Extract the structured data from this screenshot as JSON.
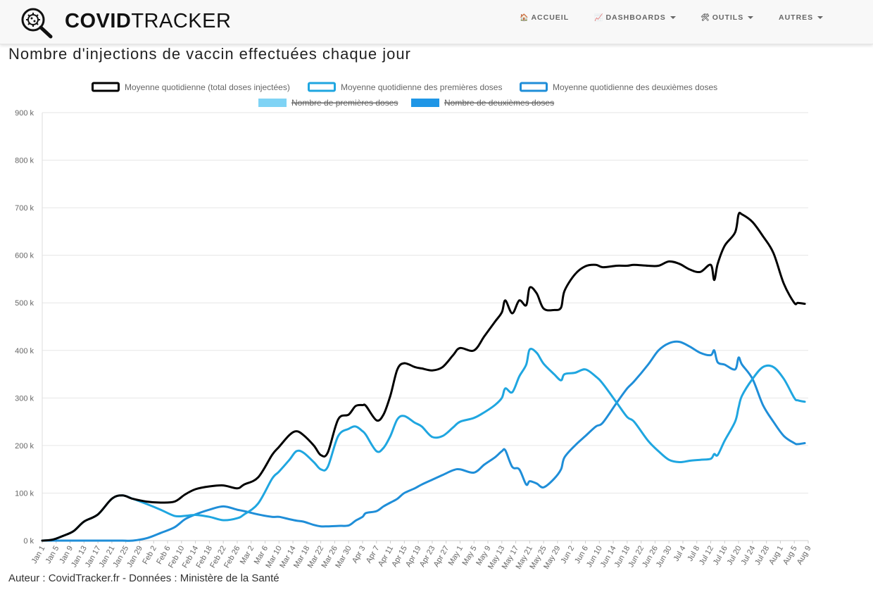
{
  "nav": {
    "brand_bold": "COVID",
    "brand_light": "TRACKER",
    "items": [
      {
        "icon": "🏠",
        "icon_name": "home-icon",
        "label": "ACCUEIL",
        "dropdown": false
      },
      {
        "icon": "📈",
        "icon_name": "chart-icon",
        "label": "DASHBOARDS",
        "dropdown": true
      },
      {
        "icon": "🛠",
        "icon_name": "tools-icon",
        "label": "OUTILS",
        "dropdown": true
      },
      {
        "icon": "",
        "icon_name": "",
        "label": "AUTRES",
        "dropdown": true
      }
    ]
  },
  "page": {
    "title": "Nombre d'injections de vaccin effectuées chaque jour",
    "credit": "Auteur : CovidTracker.fr - Données : Ministère de la Santé"
  },
  "chart_data": {
    "type": "line",
    "ylim": [
      0,
      900000
    ],
    "y_tick_values": [
      0,
      100000,
      200000,
      300000,
      400000,
      500000,
      600000,
      700000,
      800000,
      900000
    ],
    "y_tick_labels": [
      "0 k",
      "100 k",
      "200 k",
      "300 k",
      "400 k",
      "500 k",
      "600 k",
      "700 k",
      "800 k",
      "900 k"
    ],
    "x_tick_labels": [
      "Jan 1",
      "Jan 5",
      "Jan 9",
      "Jan 13",
      "Jan 17",
      "Jan 21",
      "Jan 25",
      "Jan 29",
      "Feb 2",
      "Feb 6",
      "Feb 10",
      "Feb 14",
      "Feb 18",
      "Feb 22",
      "Feb 26",
      "Mar 2",
      "Mar 6",
      "Mar 10",
      "Mar 14",
      "Mar 18",
      "Mar 22",
      "Mar 26",
      "Mar 30",
      "Apr 3",
      "Apr 7",
      "Apr 11",
      "Apr 15",
      "Apr 19",
      "Apr 23",
      "Apr 27",
      "May 1",
      "May 5",
      "May 9",
      "May 13",
      "May 17",
      "May 21",
      "May 25",
      "May 29",
      "Jun 2",
      "Jun 6",
      "Jun 10",
      "Jun 14",
      "Jun 18",
      "Jun 22",
      "Jun 26",
      "Jun 30",
      "Jul 4",
      "Jul 8",
      "Jul 12",
      "Jul 16",
      "Jul 20",
      "Jul 24",
      "Jul 28",
      "Aug 1",
      "Aug 5",
      "Aug 9"
    ],
    "grid": true,
    "legend_position": "top",
    "legend": [
      {
        "name": "Moyenne quotidienne (total doses injectées)",
        "color": "#000000",
        "style": "outline",
        "hidden": false
      },
      {
        "name": "Moyenne quotidienne des premières doses",
        "color": "#1fa6e0",
        "style": "outline",
        "hidden": false
      },
      {
        "name": "Moyenne quotidienne des deuxièmes doses",
        "color": "#1f8ed8",
        "style": "outline",
        "hidden": false
      },
      {
        "name": "Nombre de premières doses",
        "color": "#7fd3f5",
        "style": "filled",
        "hidden": true
      },
      {
        "name": "Nombre de deuxièmes doses",
        "color": "#1f96e6",
        "style": "filled",
        "hidden": true
      }
    ],
    "series": [
      {
        "name": "Moyenne quotidienne (total doses injectées)",
        "color": "#000000",
        "x": [
          "2021-01-01",
          "2021-01-04",
          "2021-01-07",
          "2021-01-10",
          "2021-01-13",
          "2021-01-17",
          "2021-01-21",
          "2021-01-24",
          "2021-01-27",
          "2021-01-31",
          "2021-02-04",
          "2021-02-08",
          "2021-02-11",
          "2021-02-14",
          "2021-02-18",
          "2021-02-22",
          "2021-02-26",
          "2021-02-28",
          "2021-03-04",
          "2021-03-08",
          "2021-03-10",
          "2021-03-13",
          "2021-03-15",
          "2021-03-17",
          "2021-03-20",
          "2021-03-22",
          "2021-03-24",
          "2021-03-27",
          "2021-03-30",
          "2021-04-01",
          "2021-04-03",
          "2021-04-04",
          "2021-04-07",
          "2021-04-09",
          "2021-04-11",
          "2021-04-13",
          "2021-04-15",
          "2021-04-18",
          "2021-04-20",
          "2021-04-23",
          "2021-04-26",
          "2021-04-29",
          "2021-05-01",
          "2021-05-05",
          "2021-05-08",
          "2021-05-11",
          "2021-05-13",
          "2021-05-14",
          "2021-05-16",
          "2021-05-18",
          "2021-05-20",
          "2021-05-21",
          "2021-05-23",
          "2021-05-25",
          "2021-05-28",
          "2021-05-30",
          "2021-05-31",
          "2021-06-03",
          "2021-06-06",
          "2021-06-09",
          "2021-06-11",
          "2021-06-15",
          "2021-06-18",
          "2021-06-20",
          "2021-06-24",
          "2021-06-27",
          "2021-06-30",
          "2021-07-03",
          "2021-07-06",
          "2021-07-09",
          "2021-07-12",
          "2021-07-13",
          "2021-07-14",
          "2021-07-16",
          "2021-07-19",
          "2021-07-20",
          "2021-07-21",
          "2021-07-24",
          "2021-07-27",
          "2021-07-30",
          "2021-08-02",
          "2021-08-05",
          "2021-08-06",
          "2021-08-08"
        ],
        "y": [
          0,
          2000,
          10000,
          20000,
          40000,
          55000,
          88000,
          95000,
          88000,
          82000,
          80000,
          82000,
          97000,
          108000,
          114000,
          116000,
          110000,
          118000,
          133000,
          180000,
          197000,
          222000,
          230000,
          222000,
          200000,
          180000,
          185000,
          255000,
          265000,
          283000,
          285000,
          283000,
          253000,
          265000,
          305000,
          360000,
          373000,
          365000,
          362000,
          358000,
          365000,
          390000,
          405000,
          400000,
          430000,
          460000,
          480000,
          505000,
          478000,
          505000,
          495000,
          532000,
          520000,
          488000,
          485000,
          490000,
          525000,
          560000,
          577000,
          580000,
          575000,
          578000,
          578000,
          580000,
          578000,
          578000,
          587000,
          582000,
          570000,
          565000,
          580000,
          548000,
          582000,
          620000,
          648000,
          686000,
          686000,
          670000,
          640000,
          605000,
          540000,
          500000,
          500000,
          498000
        ]
      },
      {
        "name": "Moyenne quotidienne des premières doses",
        "color": "#1fa6e0",
        "x": [
          "2021-01-01",
          "2021-01-04",
          "2021-01-07",
          "2021-01-10",
          "2021-01-13",
          "2021-01-17",
          "2021-01-21",
          "2021-01-24",
          "2021-01-27",
          "2021-01-31",
          "2021-02-04",
          "2021-02-08",
          "2021-02-11",
          "2021-02-14",
          "2021-02-18",
          "2021-02-22",
          "2021-02-26",
          "2021-02-28",
          "2021-03-04",
          "2021-03-08",
          "2021-03-10",
          "2021-03-13",
          "2021-03-15",
          "2021-03-17",
          "2021-03-20",
          "2021-03-22",
          "2021-03-24",
          "2021-03-27",
          "2021-03-30",
          "2021-04-01",
          "2021-04-03",
          "2021-04-04",
          "2021-04-07",
          "2021-04-09",
          "2021-04-11",
          "2021-04-13",
          "2021-04-15",
          "2021-04-18",
          "2021-04-20",
          "2021-04-23",
          "2021-04-26",
          "2021-04-29",
          "2021-05-01",
          "2021-05-05",
          "2021-05-08",
          "2021-05-11",
          "2021-05-13",
          "2021-05-14",
          "2021-05-16",
          "2021-05-18",
          "2021-05-20",
          "2021-05-21",
          "2021-05-23",
          "2021-05-25",
          "2021-05-28",
          "2021-05-30",
          "2021-05-31",
          "2021-06-03",
          "2021-06-06",
          "2021-06-09",
          "2021-06-11",
          "2021-06-15",
          "2021-06-18",
          "2021-06-20",
          "2021-06-24",
          "2021-06-27",
          "2021-06-30",
          "2021-07-03",
          "2021-07-06",
          "2021-07-09",
          "2021-07-12",
          "2021-07-13",
          "2021-07-14",
          "2021-07-16",
          "2021-07-19",
          "2021-07-20",
          "2021-07-21",
          "2021-07-24",
          "2021-07-27",
          "2021-07-30",
          "2021-08-02",
          "2021-08-05",
          "2021-08-06",
          "2021-08-08"
        ],
        "y": [
          0,
          2000,
          10000,
          20000,
          40000,
          55000,
          88000,
          95000,
          88000,
          77000,
          65000,
          52000,
          52000,
          54000,
          50000,
          43000,
          47000,
          55000,
          78000,
          130000,
          145000,
          170000,
          188000,
          185000,
          165000,
          150000,
          155000,
          220000,
          235000,
          240000,
          230000,
          222000,
          188000,
          195000,
          220000,
          255000,
          262000,
          248000,
          240000,
          218000,
          220000,
          238000,
          250000,
          258000,
          270000,
          285000,
          300000,
          320000,
          312000,
          345000,
          370000,
          402000,
          395000,
          372000,
          350000,
          337000,
          350000,
          353000,
          360000,
          345000,
          330000,
          290000,
          260000,
          250000,
          210000,
          188000,
          170000,
          165000,
          168000,
          170000,
          172000,
          182000,
          180000,
          210000,
          250000,
          280000,
          305000,
          340000,
          365000,
          365000,
          340000,
          300000,
          295000,
          292000
        ]
      },
      {
        "name": "Moyenne quotidienne des deuxièmes doses",
        "color": "#1f8ed8",
        "x": [
          "2021-01-01",
          "2021-01-04",
          "2021-01-07",
          "2021-01-10",
          "2021-01-13",
          "2021-01-17",
          "2021-01-21",
          "2021-01-24",
          "2021-01-27",
          "2021-01-31",
          "2021-02-04",
          "2021-02-08",
          "2021-02-11",
          "2021-02-14",
          "2021-02-18",
          "2021-02-22",
          "2021-02-26",
          "2021-02-28",
          "2021-03-04",
          "2021-03-08",
          "2021-03-10",
          "2021-03-13",
          "2021-03-15",
          "2021-03-17",
          "2021-03-20",
          "2021-03-22",
          "2021-03-24",
          "2021-03-27",
          "2021-03-30",
          "2021-04-01",
          "2021-04-03",
          "2021-04-04",
          "2021-04-07",
          "2021-04-09",
          "2021-04-11",
          "2021-04-13",
          "2021-04-15",
          "2021-04-18",
          "2021-04-20",
          "2021-04-23",
          "2021-04-26",
          "2021-04-29",
          "2021-05-01",
          "2021-05-05",
          "2021-05-08",
          "2021-05-11",
          "2021-05-13",
          "2021-05-14",
          "2021-05-16",
          "2021-05-18",
          "2021-05-20",
          "2021-05-21",
          "2021-05-23",
          "2021-05-25",
          "2021-05-28",
          "2021-05-30",
          "2021-05-31",
          "2021-06-03",
          "2021-06-06",
          "2021-06-09",
          "2021-06-11",
          "2021-06-15",
          "2021-06-18",
          "2021-06-20",
          "2021-06-24",
          "2021-06-27",
          "2021-06-30",
          "2021-07-03",
          "2021-07-06",
          "2021-07-09",
          "2021-07-12",
          "2021-07-13",
          "2021-07-14",
          "2021-07-16",
          "2021-07-19",
          "2021-07-20",
          "2021-07-21",
          "2021-07-24",
          "2021-07-27",
          "2021-07-30",
          "2021-08-02",
          "2021-08-05",
          "2021-08-06",
          "2021-08-08"
        ],
        "y": [
          0,
          0,
          0,
          0,
          0,
          0,
          0,
          0,
          0,
          5000,
          16000,
          28000,
          45000,
          55000,
          65000,
          72000,
          65000,
          62000,
          55000,
          50000,
          50000,
          45000,
          42000,
          40000,
          33000,
          30000,
          30000,
          31000,
          32000,
          42000,
          50000,
          58000,
          62000,
          72000,
          80000,
          88000,
          100000,
          110000,
          118000,
          128000,
          138000,
          148000,
          150000,
          143000,
          160000,
          175000,
          188000,
          190000,
          155000,
          150000,
          118000,
          125000,
          120000,
          112000,
          130000,
          150000,
          175000,
          200000,
          220000,
          240000,
          248000,
          290000,
          320000,
          335000,
          370000,
          400000,
          415000,
          418000,
          408000,
          395000,
          390000,
          400000,
          375000,
          370000,
          360000,
          385000,
          370000,
          340000,
          285000,
          250000,
          220000,
          205000,
          203000,
          205000
        ]
      }
    ]
  }
}
